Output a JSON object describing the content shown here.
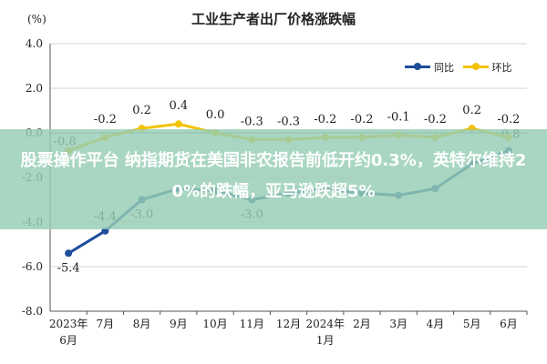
{
  "overlay": {
    "headline": "股票操作平台 纳指期货在美国非农报告前低开约0.3%，英特尔维持20%的跌幅，亚马逊跌超5%"
  },
  "colors": {
    "yoy": "#1f4e9a",
    "mom": "#f2c200",
    "banner": "#96cdb4"
  },
  "chart_data": {
    "type": "line",
    "title": "工业生产者出厂价格涨跌幅",
    "unit_label": "(%)",
    "categories": [
      "2023年6月",
      "7月",
      "8月",
      "9月",
      "10月",
      "11月",
      "12月",
      "2024年1月",
      "2月",
      "3月",
      "4月",
      "5月",
      "6月"
    ],
    "category_lines": [
      [
        "2023年",
        "6月"
      ],
      [
        "7月"
      ],
      [
        "8月"
      ],
      [
        "9月"
      ],
      [
        "10月"
      ],
      [
        "11月"
      ],
      [
        "12月"
      ],
      [
        "2024年",
        "1月"
      ],
      [
        "2月"
      ],
      [
        "3月"
      ],
      [
        "4月"
      ],
      [
        "5月"
      ],
      [
        "6月"
      ]
    ],
    "ylim": [
      -8.0,
      4.0
    ],
    "yticks": [
      "4.0",
      "2.0",
      "0.0",
      "-2.0",
      "-4.0",
      "-6.0",
      "-8.0"
    ],
    "series": [
      {
        "name": "同比",
        "color": "#1f4e9a",
        "values": [
          -5.4,
          -4.4,
          -3.0,
          -2.5,
          -2.6,
          -3.0,
          -2.7,
          -2.5,
          -2.7,
          -2.8,
          -2.5,
          -1.4,
          -0.8
        ],
        "labels": [
          "-5.4",
          "-4.4",
          "-3.0",
          "",
          "",
          "-3.0",
          "",
          "",
          "",
          "",
          "",
          "",
          "-0.8"
        ]
      },
      {
        "name": "环比",
        "color": "#f2c200",
        "values": [
          -0.8,
          -0.2,
          0.2,
          0.4,
          0.0,
          -0.3,
          -0.3,
          -0.2,
          -0.2,
          -0.1,
          -0.2,
          0.2,
          -0.2
        ],
        "labels": [
          "-0.8",
          "-0.2",
          "0.2",
          "0.4",
          "0.0",
          "-0.3",
          "-0.3",
          "-0.2",
          "-0.2",
          "-0.1",
          "-0.2",
          "0.2",
          "-0.2"
        ]
      }
    ],
    "grid": true,
    "legend": "top-right"
  }
}
